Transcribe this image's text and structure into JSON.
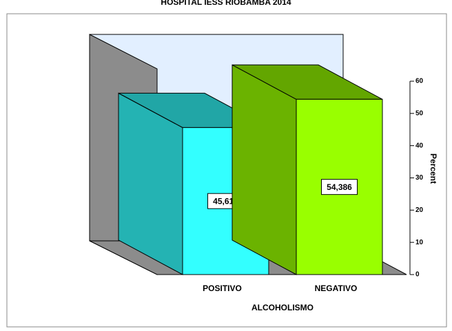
{
  "chart_data": {
    "type": "bar",
    "title": "HOSPITAL IESS RIOBAMBA 2014",
    "categories": [
      "POSITIVO",
      "NEGATIVO"
    ],
    "values": [
      45.614,
      54.386
    ],
    "value_labels": [
      "45,614",
      "54,386"
    ],
    "colors": [
      "#33ffff",
      "#99ff00"
    ],
    "x_label": "ALCOHOLISMO",
    "y_label": "Percent",
    "ylim": [
      0,
      60
    ],
    "yticks": [
      0,
      10,
      20,
      30,
      40,
      50,
      60
    ],
    "y_axis_side": "right"
  }
}
